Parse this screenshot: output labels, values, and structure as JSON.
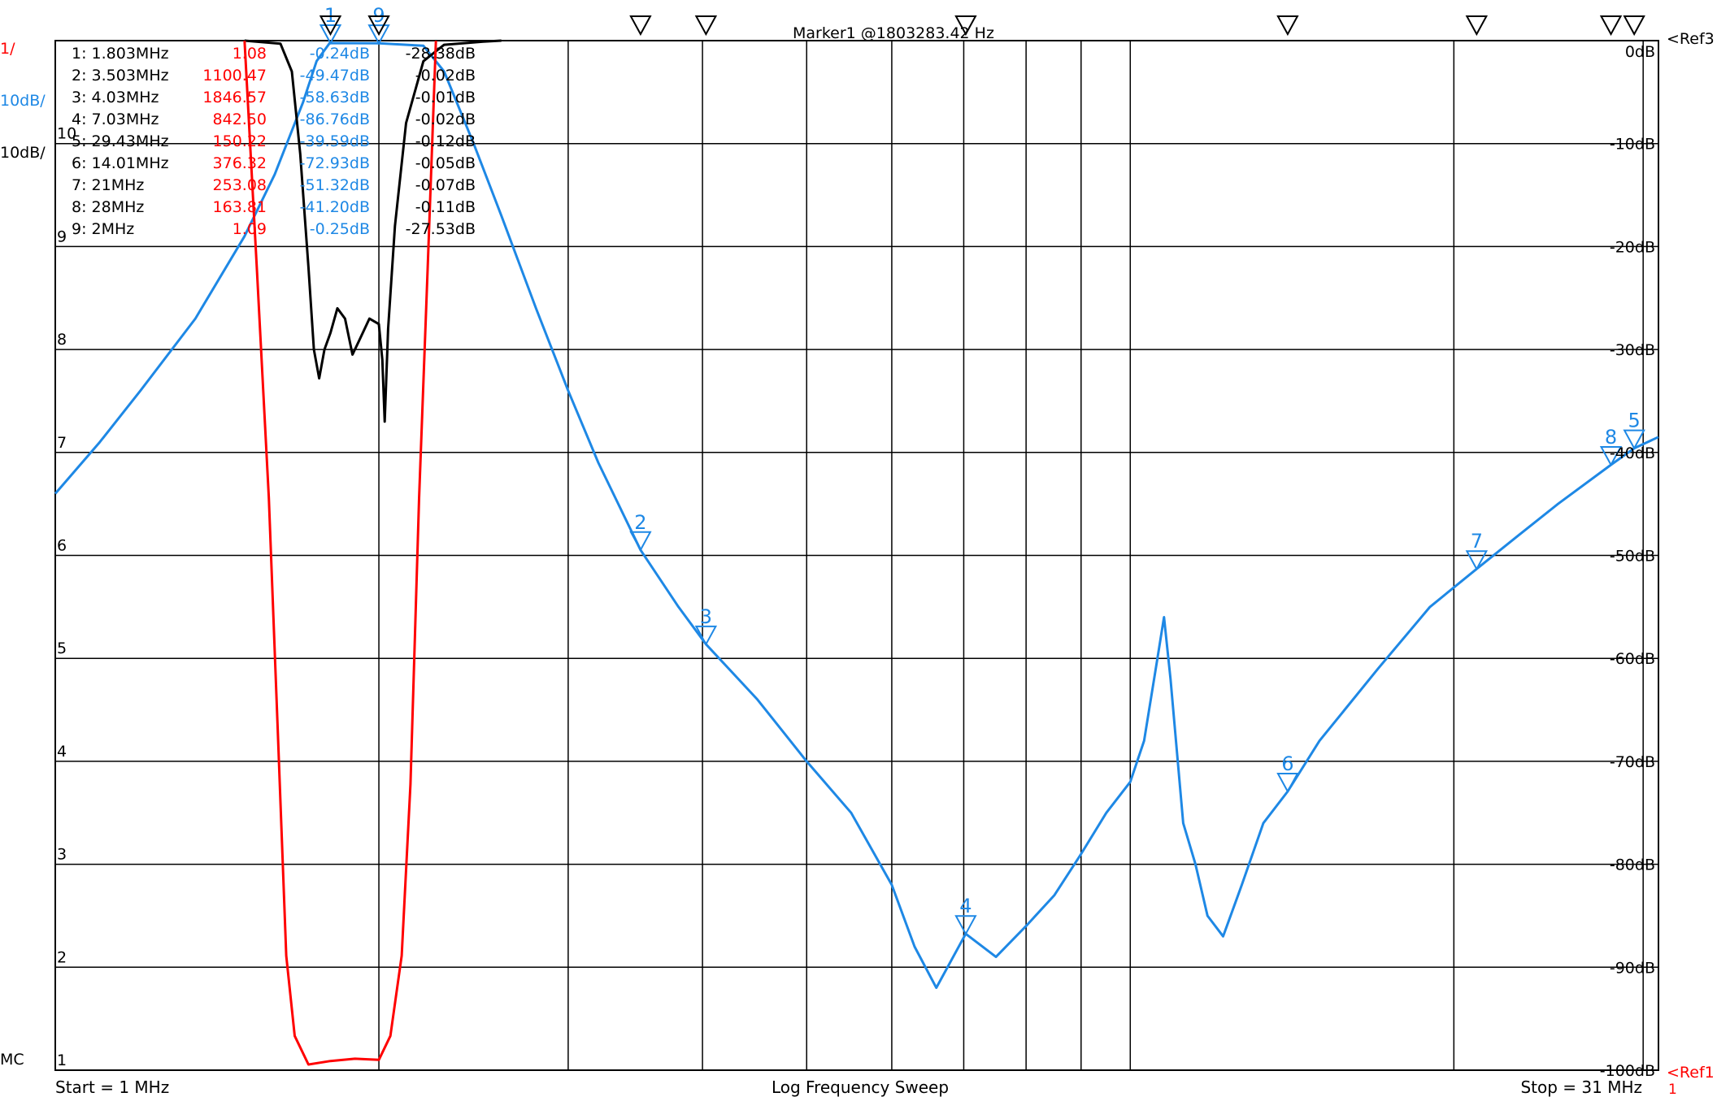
{
  "chart_data": {
    "type": "line",
    "title": "Log Frequency Sweep",
    "x_scale": "log",
    "x_range_mhz": [
      1,
      31
    ],
    "start_label": "Start = 1 MHz",
    "stop_label": "Stop = 31 MHz",
    "marker_readout": "Marker1 @1803283.42 Hz",
    "scales": {
      "red": "1/",
      "blue": "10dB/",
      "black": "10dB/"
    },
    "left_ticks": [
      "10",
      "9",
      "8",
      "7",
      "6",
      "5",
      "4",
      "3",
      "2",
      "1"
    ],
    "mc_label": "MC",
    "right_ticks": [
      "0dB",
      "-10dB",
      "-20dB",
      "-30dB",
      "-40dB",
      "-50dB",
      "-60dB",
      "-70dB",
      "-80dB",
      "-90dB",
      "-100dB"
    ],
    "ref_labels": {
      "ref3": "<Ref3",
      "ref1": "<Ref1",
      "ref1_sub": "1"
    },
    "colors": {
      "red": "#ff0000",
      "blue": "#1e88e5",
      "black": "#000000",
      "grid": "#000000"
    },
    "markers": [
      {
        "id": "1",
        "freq": "1.803MHz",
        "swr": "1.08",
        "s21": "-0.24dB",
        "s11": "-28.38dB"
      },
      {
        "id": "2",
        "freq": "3.503MHz",
        "swr": "1100.47",
        "s21": "-49.47dB",
        "s11": "-0.02dB"
      },
      {
        "id": "3",
        "freq": "4.03MHz",
        "swr": "1846.57",
        "s21": "-58.63dB",
        "s11": "-0.01dB"
      },
      {
        "id": "4",
        "freq": "7.03MHz",
        "swr": "842.50",
        "s21": "-86.76dB",
        "s11": "-0.02dB"
      },
      {
        "id": "5",
        "freq": "29.43MHz",
        "swr": "150.22",
        "s21": "-39.59dB",
        "s11": "-0.12dB"
      },
      {
        "id": "6",
        "freq": "14.01MHz",
        "swr": "376.32",
        "s21": "-72.93dB",
        "s11": "-0.05dB"
      },
      {
        "id": "7",
        "freq": "21MHz",
        "swr": "253.08",
        "s21": "-51.32dB",
        "s11": "-0.07dB"
      },
      {
        "id": "8",
        "freq": "28MHz",
        "swr": "163.81",
        "s21": "-41.20dB",
        "s11": "-0.11dB"
      },
      {
        "id": "9",
        "freq": "2MHz",
        "swr": "1.09",
        "s21": "-0.25dB",
        "s11": "-27.53dB"
      }
    ],
    "series": [
      {
        "color": "blue",
        "unit": "dB",
        "points": [
          [
            1.0,
            -44
          ],
          [
            1.1,
            -39
          ],
          [
            1.2,
            -34
          ],
          [
            1.35,
            -27
          ],
          [
            1.5,
            -19
          ],
          [
            1.6,
            -13
          ],
          [
            1.7,
            -6
          ],
          [
            1.75,
            -2
          ],
          [
            1.8,
            -0.24
          ],
          [
            2.0,
            -0.25
          ],
          [
            2.2,
            -0.5
          ],
          [
            2.3,
            -3
          ],
          [
            2.45,
            -10
          ],
          [
            2.6,
            -17
          ],
          [
            2.8,
            -26
          ],
          [
            3.0,
            -34
          ],
          [
            3.2,
            -41
          ],
          [
            3.503,
            -49.47
          ],
          [
            3.8,
            -55
          ],
          [
            4.03,
            -58.63
          ],
          [
            4.5,
            -64
          ],
          [
            5.0,
            -70
          ],
          [
            5.5,
            -75
          ],
          [
            6.0,
            -82
          ],
          [
            6.3,
            -88
          ],
          [
            6.6,
            -92
          ],
          [
            7.03,
            -86.76
          ],
          [
            7.5,
            -89
          ],
          [
            8.0,
            -86
          ],
          [
            8.5,
            -83
          ],
          [
            9.0,
            -79
          ],
          [
            9.5,
            -75
          ],
          [
            10.0,
            -72
          ],
          [
            10.3,
            -68
          ],
          [
            10.6,
            -60
          ],
          [
            10.75,
            -56
          ],
          [
            10.9,
            -62
          ],
          [
            11.2,
            -76
          ],
          [
            11.5,
            -80
          ],
          [
            11.8,
            -85
          ],
          [
            12.2,
            -87
          ],
          [
            12.7,
            -82
          ],
          [
            13.3,
            -76
          ],
          [
            14.01,
            -72.93
          ],
          [
            15.0,
            -68
          ],
          [
            17.0,
            -61
          ],
          [
            19.0,
            -55
          ],
          [
            21.0,
            -51.32
          ],
          [
            23.0,
            -48
          ],
          [
            25.0,
            -45
          ],
          [
            28.0,
            -41.2
          ],
          [
            29.43,
            -39.59
          ],
          [
            31.0,
            -38.5
          ]
        ]
      },
      {
        "color": "black",
        "unit": "dB",
        "points": [
          [
            1.5,
            0
          ],
          [
            1.62,
            -0.3
          ],
          [
            1.66,
            -3
          ],
          [
            1.69,
            -11
          ],
          [
            1.72,
            -22
          ],
          [
            1.74,
            -30
          ],
          [
            1.76,
            -32.8
          ],
          [
            1.78,
            -30
          ],
          [
            1.803,
            -28.38
          ],
          [
            1.83,
            -26
          ],
          [
            1.86,
            -27
          ],
          [
            1.89,
            -30.5
          ],
          [
            1.92,
            -29
          ],
          [
            1.96,
            -27
          ],
          [
            2.0,
            -27.53
          ],
          [
            2.015,
            -31
          ],
          [
            2.025,
            -37
          ],
          [
            2.04,
            -28
          ],
          [
            2.07,
            -18
          ],
          [
            2.12,
            -8
          ],
          [
            2.2,
            -2
          ],
          [
            2.3,
            -0.4
          ],
          [
            2.5,
            -0.1
          ],
          [
            2.6,
            0
          ]
        ]
      },
      {
        "color": "red",
        "unit": "SWR",
        "points": [
          [
            1.5,
            10
          ],
          [
            1.54,
            8
          ],
          [
            1.58,
            6
          ],
          [
            1.61,
            4
          ],
          [
            1.64,
            2
          ],
          [
            1.67,
            1.3
          ],
          [
            1.72,
            1.05
          ],
          [
            1.803,
            1.08
          ],
          [
            1.9,
            1.1
          ],
          [
            2.0,
            1.09
          ],
          [
            2.05,
            1.3
          ],
          [
            2.1,
            2
          ],
          [
            2.14,
            3.5
          ],
          [
            2.18,
            6
          ],
          [
            2.22,
            8
          ],
          [
            2.26,
            10
          ]
        ]
      }
    ]
  }
}
